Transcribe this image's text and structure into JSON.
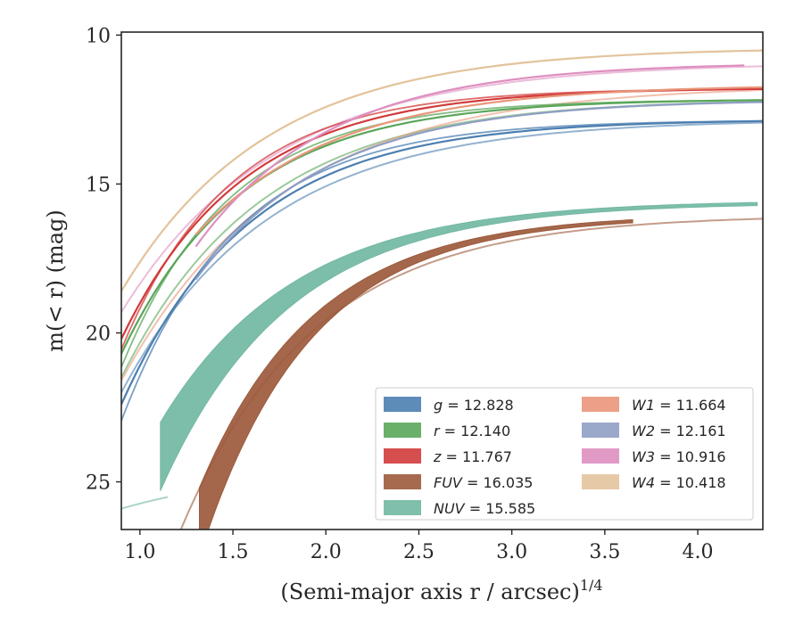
{
  "chart_data": {
    "type": "line",
    "xlabel": "(Semi-major axis r / arcsec)",
    "xlabel_sup": "1/4",
    "ylabel": "m(< r) (mag)",
    "xlim": [
      0.9,
      4.35
    ],
    "ylim": [
      26.6,
      9.9
    ],
    "y_inverted": true,
    "x_ticks": [
      1.0,
      1.5,
      2.0,
      2.5,
      3.0,
      3.5,
      4.0
    ],
    "x_tick_labels": [
      "1.0",
      "1.5",
      "2.0",
      "2.5",
      "3.0",
      "3.5",
      "4.0"
    ],
    "y_ticks": [
      10,
      15,
      20,
      25
    ],
    "y_tick_labels": [
      "10",
      "15",
      "20",
      "25"
    ],
    "legend_position": "lower-right",
    "legend_columns": 2,
    "series": [
      {
        "name": "g",
        "label": "= 12.828",
        "color": "#4c7fb0",
        "x_start": 0.9,
        "x_end": 4.35,
        "mag_inner": 22.4,
        "mag_total": 12.828,
        "scale": 0.68,
        "alt_offset": 0.55
      },
      {
        "name": "r",
        "label": "= 12.140",
        "color": "#5aa65a",
        "x_start": 0.9,
        "x_end": 4.35,
        "mag_inner": 20.7,
        "mag_total": 12.14,
        "scale": 0.65,
        "alt_offset": 0.45
      },
      {
        "name": "z",
        "label": "= 11.767",
        "color": "#d13b3b",
        "x_start": 0.9,
        "x_end": 4.35,
        "mag_inner": 20.2,
        "mag_total": 11.767,
        "scale": 0.65,
        "alt_offset": 0.35
      },
      {
        "name": "FUV",
        "label": "= 16.035",
        "color": "#9c5a3c",
        "x_start": 1.32,
        "x_end": 3.65,
        "mag_inner": 26.6,
        "mag_total": 16.035,
        "scale": 0.62
      },
      {
        "name": "NUV",
        "label": "= 15.585",
        "color": "#72b8a3",
        "x_start": 1.11,
        "x_end": 4.32,
        "mag_inner": 24.4,
        "mag_total": 15.585,
        "scale": 0.72
      },
      {
        "name": "W1",
        "label": "= 11.664",
        "color": "#e9967a",
        "x_start": 1.3,
        "x_end": 4.35,
        "mag_inner": 16.7,
        "mag_total": 11.664,
        "scale": 0.75
      },
      {
        "name": "W2",
        "label": "= 12.161",
        "color": "#8f9fc4",
        "x_start": 1.3,
        "x_end": 4.35,
        "mag_inner": 18.2,
        "mag_total": 12.161,
        "scale": 0.72
      },
      {
        "name": "W3",
        "label": "= 10.916",
        "color": "#de8fc0",
        "x_start": 1.3,
        "x_end": 4.25,
        "mag_inner": 17.1,
        "mag_total": 10.916,
        "scale": 0.72
      },
      {
        "name": "W4",
        "label": "= 10.418",
        "color": "#e3c39c",
        "x_start": 0.9,
        "x_end": 4.35,
        "mag_inner": 18.6,
        "mag_total": 10.418,
        "scale": 0.78
      }
    ],
    "extension_curves": [
      {
        "series": "g",
        "x_start": 0.9,
        "x_end": 4.35,
        "mag_inner": 22.0,
        "mag_total": 12.828
      },
      {
        "series": "r",
        "x_start": 0.9,
        "x_end": 4.35,
        "mag_inner": 21.5,
        "mag_total": 12.14
      },
      {
        "series": "W1",
        "x_start": 0.9,
        "x_end": 4.35,
        "mag_inner": 21.6,
        "mag_total": 11.664
      },
      {
        "series": "W3",
        "x_start": 0.9,
        "x_end": 4.35,
        "mag_inner": 19.3,
        "mag_total": 10.916
      },
      {
        "series": "FUV",
        "x_start": 1.22,
        "x_end": 4.35,
        "mag_inner": 26.6,
        "mag_total": 16.035
      },
      {
        "series": "NUV",
        "x_start": 0.9,
        "x_end": 1.15,
        "mag_inner": 25.9,
        "mag_total": 24.4
      }
    ]
  }
}
